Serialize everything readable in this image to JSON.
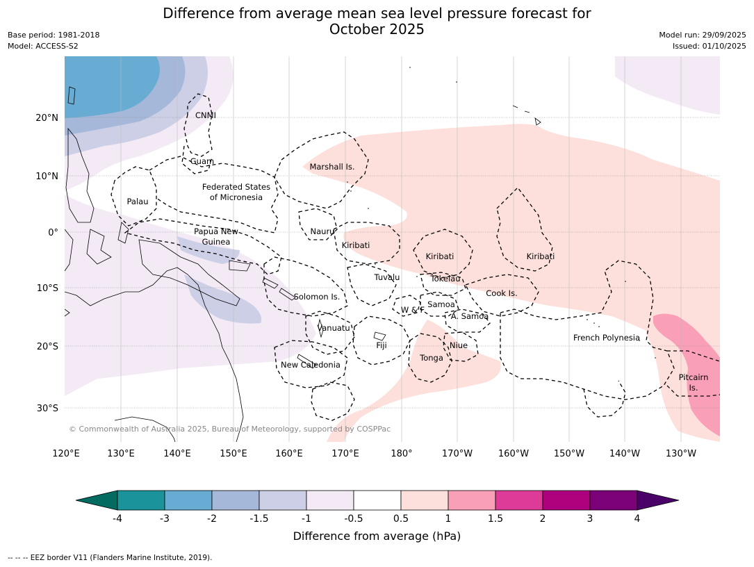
{
  "header": {
    "title_line1": "Difference from average mean sea level pressure forecast for",
    "title_line2": "October 2025",
    "base_period": "Base period: 1981-2018",
    "model": "Model: ACCESS-S2",
    "model_run": "Model run: 29/09/2025",
    "issued": "Issued: 01/10/2025"
  },
  "map": {
    "lat_labels": [
      "20°N",
      "10°N",
      "0°",
      "10°S",
      "20°S",
      "30°S"
    ],
    "lon_labels": [
      "120°E",
      "130°E",
      "140°E",
      "150°E",
      "160°E",
      "170°E",
      "180°",
      "170°W",
      "160°W",
      "150°W",
      "140°W",
      "130°W"
    ],
    "regions": {
      "cnmi": "CNMI",
      "guam": "Guam",
      "marshall": "Marshall Is.",
      "fsm1": "Federated States",
      "fsm2": "of Micronesia",
      "palau": "Palau",
      "png1": "Papua New",
      "png2": "Guinea",
      "nauru": "Nauru",
      "kiribati_w": "Kiribati",
      "kiribati_c": "Kiribati",
      "kiribati_e": "Kiribati",
      "tuvalu": "Tuvalu",
      "tokelau": "Tokelau",
      "solomon": "Solomon Is.",
      "samoa": "Samoa",
      "wf": "W & F",
      "asamoa": "A. Samoa",
      "cook": "Cook Is.",
      "vanuatu": "Vanuatu",
      "fiji": "Fiji",
      "niue": "Niue",
      "tonga": "Tonga",
      "newcal": "New Caledonia",
      "frpoly": "French Polynesia",
      "pitcairn1": "Pitcairn",
      "pitcairn2": "Is."
    },
    "copyright": "© Commonwealth of Australia 2025, Bureau of Meteorology, supported by COSPPac",
    "colors": {
      "neg4": "#036b5f",
      "neg3": "#1b939b",
      "neg2": "#68abd3",
      "neg15": "#a5b8d9",
      "neg1": "#cdcfe6",
      "neg05": "#f3eaf5",
      "zero": "#ffffff",
      "pos05": "#fde0db",
      "pos1": "#f9a0b8",
      "pos15": "#de3a97",
      "pos2": "#ad017e",
      "pos3": "#7b0178",
      "pos4": "#4a0068"
    }
  },
  "colorbar": {
    "ticks": [
      "-4",
      "-3",
      "-2",
      "-1.5",
      "-1",
      "-0.5",
      "0.5",
      "1",
      "1.5",
      "2",
      "3",
      "4"
    ],
    "label": "Difference from average (hPa)"
  },
  "footer": "--  --  -- EEZ border V11 (Flanders Marine Institute, 2019)."
}
